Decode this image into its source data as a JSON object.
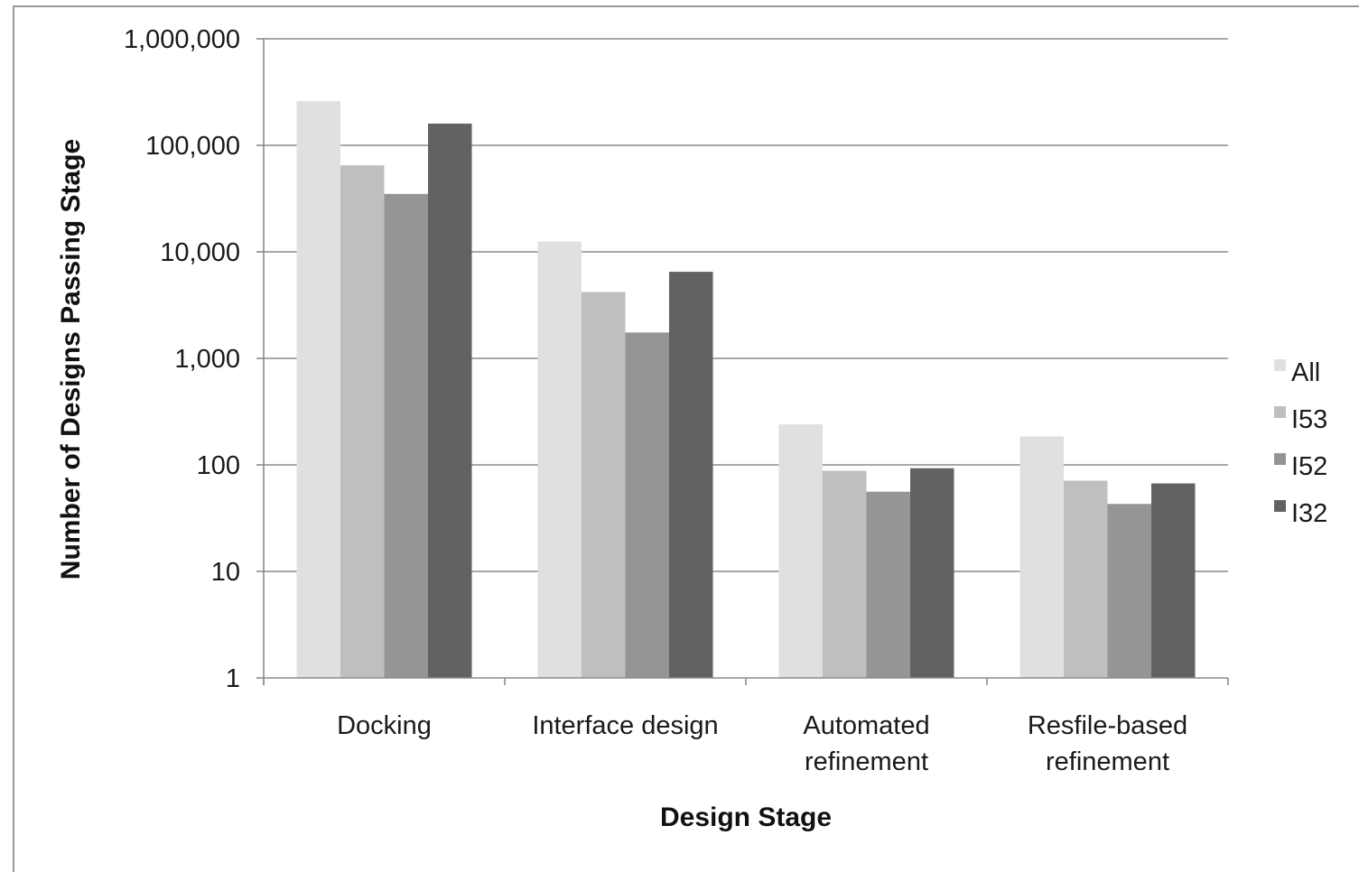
{
  "chart_data": {
    "type": "bar",
    "scale": "log",
    "xlabel": "Design Stage",
    "ylabel": "Number of Designs Passing Stage",
    "ylim": [
      1,
      1000000
    ],
    "yticks": [
      1,
      10,
      100,
      1000,
      10000,
      100000,
      1000000
    ],
    "ytick_labels": [
      "1",
      "10",
      "100",
      "1,000",
      "10,000",
      "100,000",
      "1,000,000"
    ],
    "grid": true,
    "legend_position": "right",
    "categories": [
      [
        "Docking"
      ],
      [
        "Interface design"
      ],
      [
        "Automated",
        "refinement"
      ],
      [
        "Resfile-based",
        "refinement"
      ]
    ],
    "series": [
      {
        "name": "All",
        "color": "#e0e0e0",
        "values": [
          260000,
          12500,
          240,
          185
        ]
      },
      {
        "name": "I53",
        "color": "#bfbfbf",
        "values": [
          65000,
          4200,
          88,
          71
        ]
      },
      {
        "name": "I52",
        "color": "#959595",
        "values": [
          35000,
          1750,
          56,
          43
        ]
      },
      {
        "name": "I32",
        "color": "#626262",
        "values": [
          160000,
          6500,
          93,
          67
        ]
      }
    ]
  }
}
